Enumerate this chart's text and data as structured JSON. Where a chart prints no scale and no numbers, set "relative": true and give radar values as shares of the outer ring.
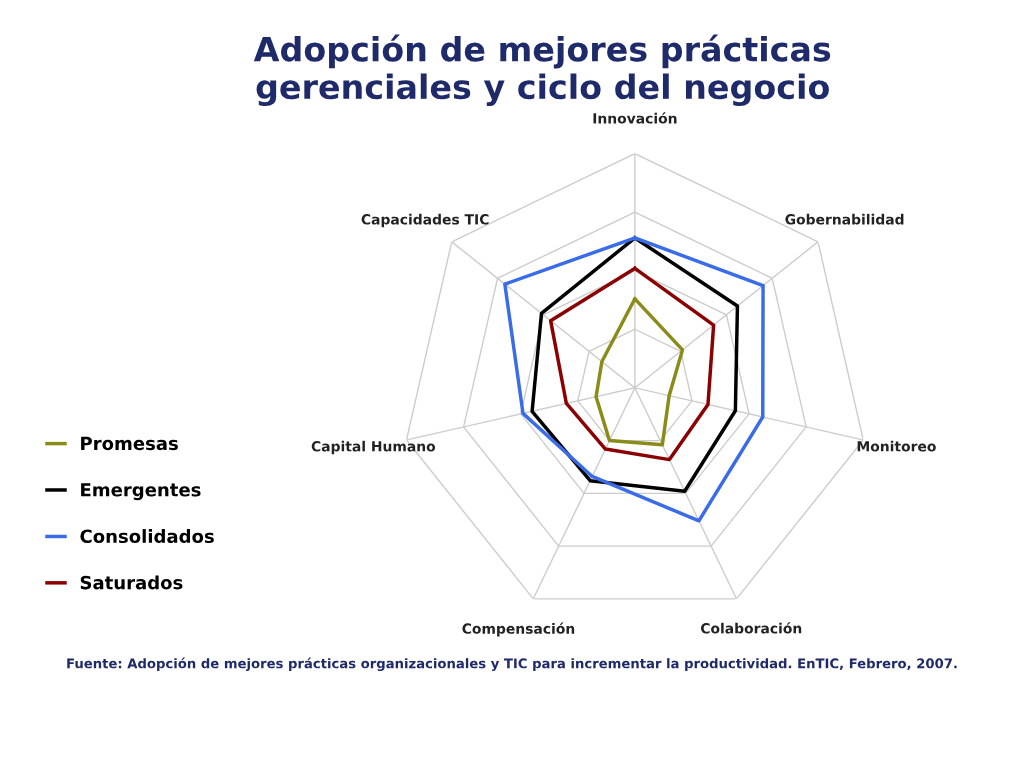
{
  "chart_data": {
    "type": "radar",
    "title": "Adopción de mejores prácticas\ngerenciales y ciclo del negocio",
    "relative": true,
    "grid": true,
    "legend": "left",
    "categories": [
      "Innovación",
      "Gobernabilidad",
      "Monitoreo",
      "Colaboración",
      "Compensación",
      "Capital Humano",
      "Capacidades TIC"
    ],
    "series": [
      {
        "name": "Promesas",
        "color": "#8b8b1a",
        "values": [
          0.38,
          0.26,
          0.15,
          0.27,
          0.25,
          0.17,
          0.18
        ]
      },
      {
        "name": "Emergentes",
        "color": "#000000",
        "values": [
          0.64,
          0.56,
          0.44,
          0.49,
          0.44,
          0.45,
          0.51
        ]
      },
      {
        "name": "Consolidados",
        "color": "#3a6be8",
        "values": [
          0.64,
          0.7,
          0.56,
          0.63,
          0.42,
          0.49,
          0.71
        ]
      },
      {
        "name": "Saturados",
        "color": "#8b0000",
        "values": [
          0.51,
          0.43,
          0.32,
          0.34,
          0.29,
          0.3,
          0.46
        ]
      }
    ],
    "annotations": [
      "Fuente: Adopción de mejores prácticas organizacionales y TIC para incrementar la productividad. EnTIC, Febrero, 2007."
    ]
  }
}
